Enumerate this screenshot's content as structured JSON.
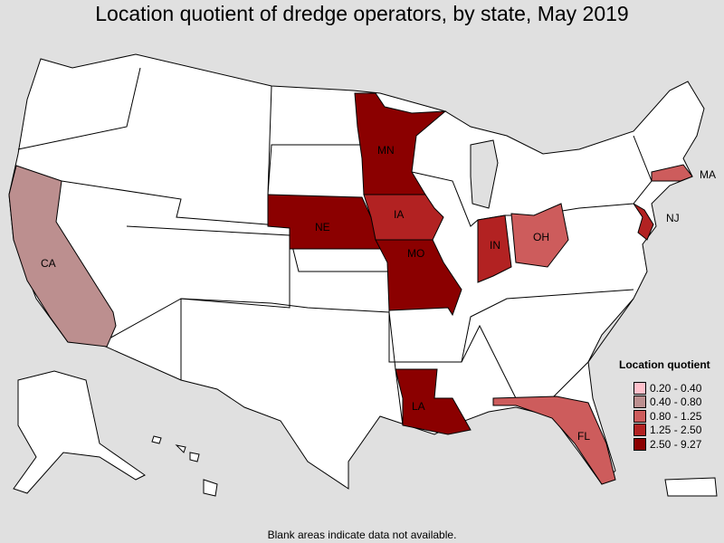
{
  "title": "Location quotient of dredge operators, by state, May 2019",
  "footnote": "Blank areas indicate data not available.",
  "legend": {
    "title": "Location quotient",
    "items": [
      {
        "label": "0.20 - 0.40",
        "color": "#ffc0cb"
      },
      {
        "label": "0.40 - 0.80",
        "color": "#bc8f8f"
      },
      {
        "label": "0.80 - 1.25",
        "color": "#cd5c5c"
      },
      {
        "label": "1.25 - 2.50",
        "color": "#b22222"
      },
      {
        "label": "2.50 - 9.27",
        "color": "#8b0000"
      }
    ]
  },
  "states": [
    {
      "abbr": "CA",
      "class": 1
    },
    {
      "abbr": "MN",
      "class": 4
    },
    {
      "abbr": "NE",
      "class": 4
    },
    {
      "abbr": "IA",
      "class": 3
    },
    {
      "abbr": "MO",
      "class": 4
    },
    {
      "abbr": "LA",
      "class": 4
    },
    {
      "abbr": "IN",
      "class": 3
    },
    {
      "abbr": "OH",
      "class": 2
    },
    {
      "abbr": "FL",
      "class": 2
    },
    {
      "abbr": "NJ",
      "class": 3
    },
    {
      "abbr": "MA",
      "class": 2
    }
  ],
  "no_data_color": "#e0e0e0"
}
